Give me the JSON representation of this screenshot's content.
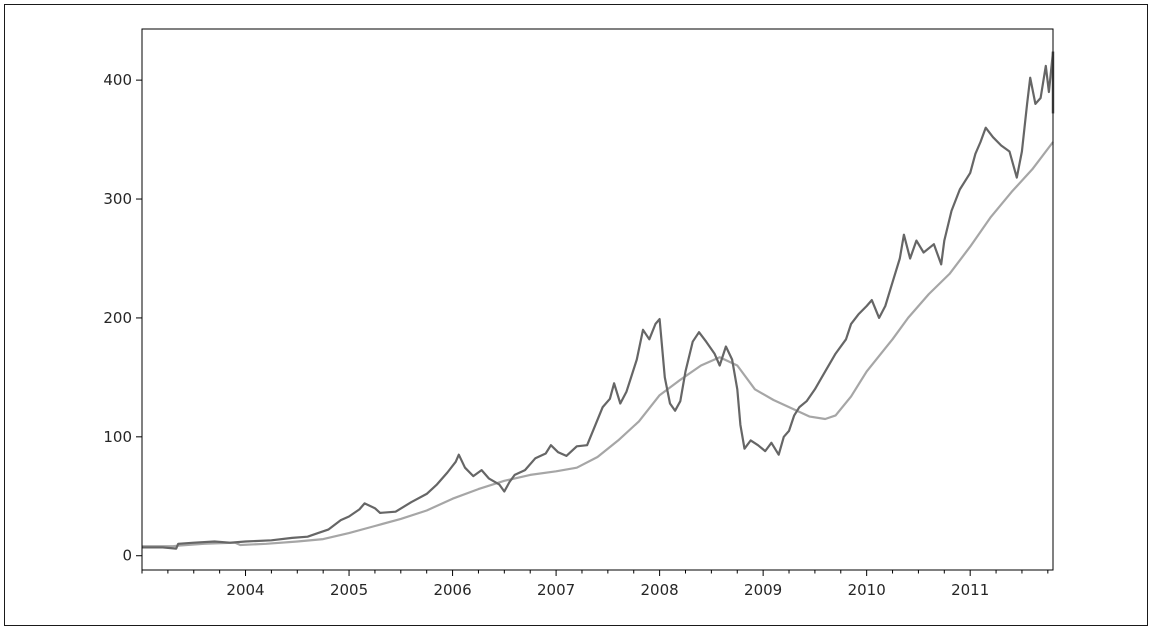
{
  "chart_data": {
    "type": "line",
    "title": "",
    "xlabel": "",
    "ylabel": "",
    "xlim": [
      2003.0,
      2011.8
    ],
    "ylim": [
      -12,
      443
    ],
    "grid": false,
    "legend": "none",
    "x_ticks": [
      {
        "value": 2004,
        "label": "2004"
      },
      {
        "value": 2005,
        "label": "2005"
      },
      {
        "value": 2006,
        "label": "2006"
      },
      {
        "value": 2007,
        "label": "2007"
      },
      {
        "value": 2008,
        "label": "2008"
      },
      {
        "value": 2009,
        "label": "2009"
      },
      {
        "value": 2010,
        "label": "2010"
      },
      {
        "value": 2011,
        "label": "2011"
      }
    ],
    "x_minor_ticks": [
      2003.0,
      2003.25,
      2003.5,
      2003.75,
      2004.25,
      2004.5,
      2004.75,
      2005.25,
      2005.5,
      2005.75,
      2006.25,
      2006.5,
      2006.75,
      2007.25,
      2007.5,
      2007.75,
      2008.25,
      2008.5,
      2008.75,
      2009.25,
      2009.5,
      2009.75,
      2010.25,
      2010.5,
      2010.75,
      2011.25,
      2011.5,
      2011.75
    ],
    "y_ticks": [
      {
        "value": 0,
        "label": "0"
      },
      {
        "value": 100,
        "label": "100"
      },
      {
        "value": 200,
        "label": "200"
      },
      {
        "value": 300,
        "label": "300"
      },
      {
        "value": 400,
        "label": "400"
      }
    ],
    "series": [
      {
        "color": "#666666",
        "points": [
          [
            2003.0,
            7
          ],
          [
            2003.2,
            7
          ],
          [
            2003.33,
            6
          ],
          [
            2003.35,
            10
          ],
          [
            2003.5,
            11
          ],
          [
            2003.7,
            12
          ],
          [
            2003.85,
            11
          ],
          [
            2004.0,
            12
          ],
          [
            2004.25,
            13
          ],
          [
            2004.45,
            15
          ],
          [
            2004.6,
            16
          ],
          [
            2004.7,
            19
          ],
          [
            2004.8,
            22
          ],
          [
            2004.92,
            30
          ],
          [
            2005.0,
            33
          ],
          [
            2005.1,
            39
          ],
          [
            2005.15,
            44
          ],
          [
            2005.25,
            40
          ],
          [
            2005.3,
            36
          ],
          [
            2005.45,
            37
          ],
          [
            2005.6,
            45
          ],
          [
            2005.75,
            52
          ],
          [
            2005.85,
            60
          ],
          [
            2005.95,
            70
          ],
          [
            2006.03,
            79
          ],
          [
            2006.06,
            85
          ],
          [
            2006.12,
            74
          ],
          [
            2006.2,
            67
          ],
          [
            2006.28,
            72
          ],
          [
            2006.35,
            65
          ],
          [
            2006.45,
            60
          ],
          [
            2006.5,
            54
          ],
          [
            2006.55,
            62
          ],
          [
            2006.6,
            68
          ],
          [
            2006.7,
            72
          ],
          [
            2006.8,
            82
          ],
          [
            2006.9,
            86
          ],
          [
            2006.95,
            93
          ],
          [
            2007.02,
            87
          ],
          [
            2007.1,
            84
          ],
          [
            2007.2,
            92
          ],
          [
            2007.3,
            93
          ],
          [
            2007.38,
            110
          ],
          [
            2007.45,
            125
          ],
          [
            2007.52,
            132
          ],
          [
            2007.56,
            145
          ],
          [
            2007.62,
            128
          ],
          [
            2007.68,
            138
          ],
          [
            2007.78,
            165
          ],
          [
            2007.84,
            190
          ],
          [
            2007.9,
            182
          ],
          [
            2007.96,
            195
          ],
          [
            2008.0,
            199
          ],
          [
            2008.05,
            150
          ],
          [
            2008.1,
            128
          ],
          [
            2008.15,
            122
          ],
          [
            2008.2,
            130
          ],
          [
            2008.25,
            155
          ],
          [
            2008.32,
            180
          ],
          [
            2008.38,
            188
          ],
          [
            2008.45,
            180
          ],
          [
            2008.53,
            170
          ],
          [
            2008.58,
            160
          ],
          [
            2008.64,
            176
          ],
          [
            2008.7,
            165
          ],
          [
            2008.75,
            140
          ],
          [
            2008.78,
            110
          ],
          [
            2008.82,
            90
          ],
          [
            2008.88,
            97
          ],
          [
            2008.95,
            93
          ],
          [
            2009.02,
            88
          ],
          [
            2009.08,
            95
          ],
          [
            2009.15,
            85
          ],
          [
            2009.2,
            100
          ],
          [
            2009.25,
            105
          ],
          [
            2009.3,
            118
          ],
          [
            2009.35,
            125
          ],
          [
            2009.42,
            130
          ],
          [
            2009.5,
            140
          ],
          [
            2009.6,
            155
          ],
          [
            2009.7,
            170
          ],
          [
            2009.8,
            182
          ],
          [
            2009.85,
            195
          ],
          [
            2009.92,
            203
          ],
          [
            2010.0,
            210
          ],
          [
            2010.05,
            215
          ],
          [
            2010.12,
            200
          ],
          [
            2010.18,
            210
          ],
          [
            2010.25,
            230
          ],
          [
            2010.32,
            250
          ],
          [
            2010.36,
            270
          ],
          [
            2010.42,
            250
          ],
          [
            2010.48,
            265
          ],
          [
            2010.55,
            255
          ],
          [
            2010.65,
            262
          ],
          [
            2010.72,
            245
          ],
          [
            2010.75,
            265
          ],
          [
            2010.82,
            290
          ],
          [
            2010.9,
            308
          ],
          [
            2011.0,
            322
          ],
          [
            2011.05,
            338
          ],
          [
            2011.1,
            348
          ],
          [
            2011.15,
            360
          ],
          [
            2011.22,
            352
          ],
          [
            2011.3,
            345
          ],
          [
            2011.38,
            340
          ],
          [
            2011.45,
            318
          ],
          [
            2011.5,
            340
          ],
          [
            2011.55,
            380
          ],
          [
            2011.58,
            402
          ],
          [
            2011.63,
            380
          ],
          [
            2011.68,
            385
          ],
          [
            2011.73,
            412
          ],
          [
            2011.76,
            390
          ],
          [
            2011.8,
            424
          ]
        ]
      },
      {
        "color": "#a6a6a6",
        "points": [
          [
            2003.0,
            8
          ],
          [
            2003.3,
            8
          ],
          [
            2003.35,
            8.5
          ],
          [
            2003.6,
            10
          ],
          [
            2003.9,
            11
          ],
          [
            2003.95,
            9
          ],
          [
            2004.2,
            10
          ],
          [
            2004.5,
            12
          ],
          [
            2004.75,
            14
          ],
          [
            2005.0,
            19
          ],
          [
            2005.25,
            25
          ],
          [
            2005.5,
            31
          ],
          [
            2005.75,
            38
          ],
          [
            2006.0,
            48
          ],
          [
            2006.25,
            56
          ],
          [
            2006.5,
            63
          ],
          [
            2006.75,
            68
          ],
          [
            2007.0,
            71
          ],
          [
            2007.2,
            74
          ],
          [
            2007.4,
            83
          ],
          [
            2007.6,
            97
          ],
          [
            2007.8,
            113
          ],
          [
            2008.0,
            135
          ],
          [
            2008.2,
            148
          ],
          [
            2008.4,
            160
          ],
          [
            2008.58,
            167
          ],
          [
            2008.75,
            160
          ],
          [
            2008.92,
            140
          ],
          [
            2009.1,
            131
          ],
          [
            2009.3,
            123
          ],
          [
            2009.45,
            117
          ],
          [
            2009.6,
            115
          ],
          [
            2009.7,
            118
          ],
          [
            2009.85,
            134
          ],
          [
            2010.0,
            155
          ],
          [
            2010.25,
            182
          ],
          [
            2010.4,
            200
          ],
          [
            2010.6,
            220
          ],
          [
            2010.8,
            237
          ],
          [
            2011.0,
            260
          ],
          [
            2011.2,
            285
          ],
          [
            2011.4,
            306
          ],
          [
            2011.6,
            325
          ],
          [
            2011.8,
            348
          ]
        ]
      }
    ]
  }
}
